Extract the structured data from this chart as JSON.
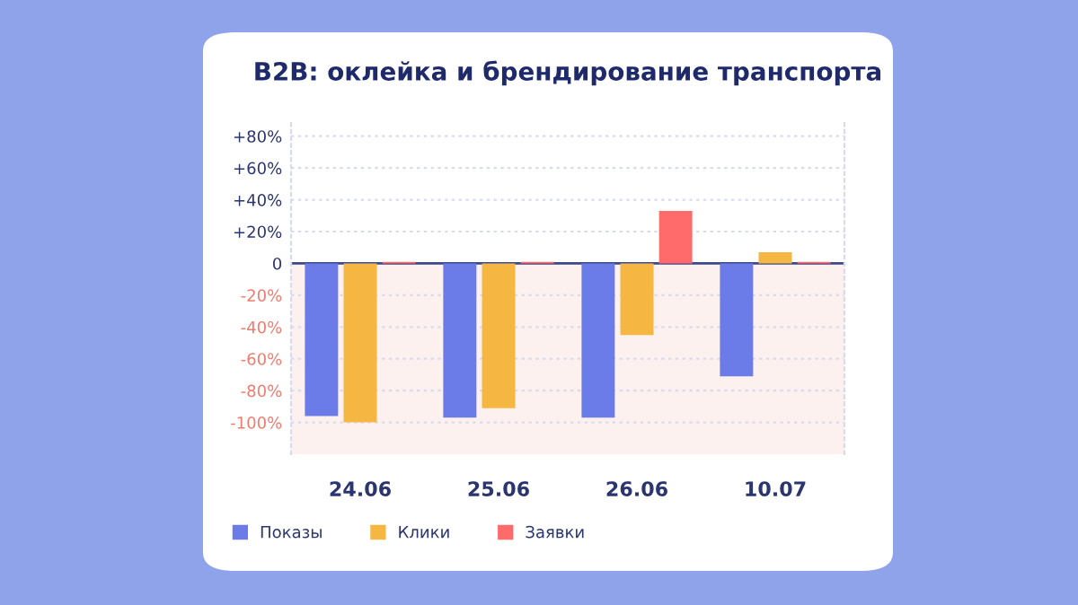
{
  "chart_data": {
    "type": "bar",
    "title": "B2B: оклейка и брендирование транспорта",
    "categories": [
      "24.06",
      "25.06",
      "26.06",
      "10.07"
    ],
    "series": [
      {
        "name": "Показы",
        "color": "#6b7be8",
        "values": [
          -96,
          -97,
          -97,
          -71
        ]
      },
      {
        "name": "Клики",
        "color": "#f5b642",
        "values": [
          -100,
          -91,
          -45,
          7
        ]
      },
      {
        "name": "Заявки",
        "color": "#ff6b6b",
        "values": [
          1,
          1,
          33,
          1
        ]
      }
    ],
    "ylim": [
      -120,
      90
    ],
    "yticks": [
      {
        "value": -100,
        "label": "-100%"
      },
      {
        "value": -80,
        "label": "-80%"
      },
      {
        "value": -60,
        "label": "-60%"
      },
      {
        "value": -40,
        "label": "-40%"
      },
      {
        "value": -20,
        "label": "-20%"
      },
      0,
      {
        "value": 20,
        "label": "+20%"
      },
      {
        "value": 40,
        "label": "+40%"
      },
      {
        "value": 60,
        "label": "+60%"
      },
      {
        "value": 80,
        "label": "+80%"
      }
    ],
    "bands": [
      {
        "axis": "y",
        "from": -120,
        "to": 0,
        "color": "#fdf1ef"
      }
    ],
    "ref_lines": [
      {
        "axis": "y",
        "value": 0,
        "color": "#3d4a8a"
      }
    ],
    "grid": "y",
    "legend": "bottom left"
  }
}
